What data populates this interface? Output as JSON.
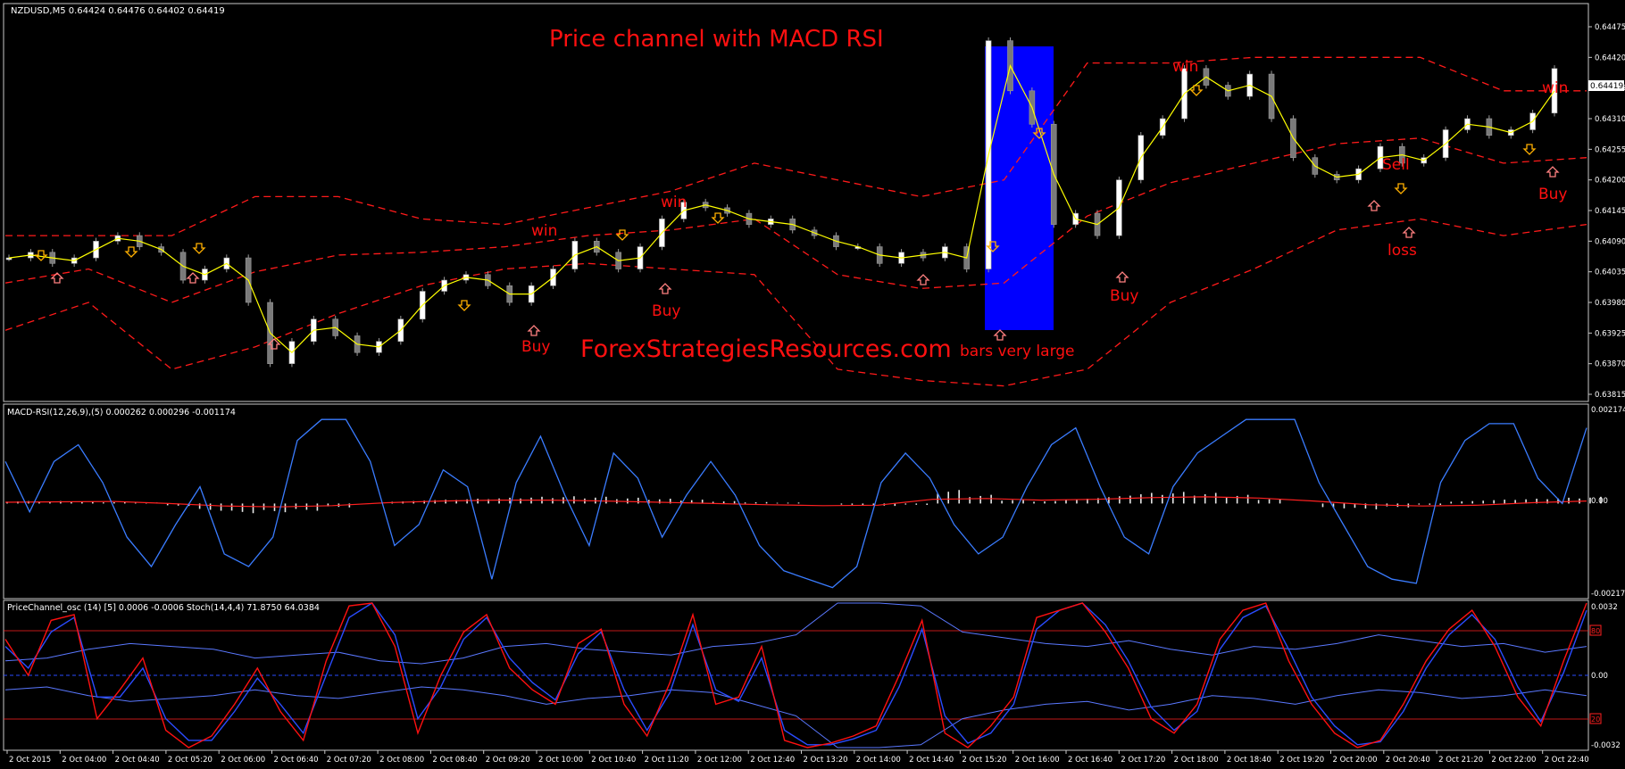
{
  "colors": {
    "background": "#000000",
    "frame": "#c8c8c8",
    "text": "#ffffff",
    "red": "#ff0000",
    "blue_line": "#3a7cff",
    "yellow_line": "#ffff00",
    "blue_box": "#0000ff",
    "arrow_orange": "#ffb000",
    "arrow_pink": "#ff8080"
  },
  "price_panel": {
    "header": "NZDUSD,M5  0.64424 0.64476 0.64402 0.64419",
    "title": "Price channel with MACD RSI",
    "watermark": "ForexStrategiesResources.com",
    "current_price": "0.64419",
    "price_axis": [
      "0.64475",
      "0.64420",
      "0.64365",
      "0.64310",
      "0.64255",
      "0.64200",
      "0.64145",
      "0.64090",
      "0.64035",
      "0.63980",
      "0.63925",
      "0.63870",
      "0.63815"
    ],
    "annotations": {
      "win_1": "win",
      "win_2": "win",
      "win_3": "win",
      "win_4": "win",
      "buy_1": "Buy",
      "buy_2": "Buy",
      "buy_3": "Buy",
      "buy_4": "Buy",
      "sell": "Sell",
      "loss": "loss",
      "large_bars": "bars very large"
    }
  },
  "macd_panel": {
    "header": "MACD-RSI(12,26,9),(5) 0.000262 0.000296 -0.001174",
    "axis": [
      "0.002174",
      "0.00",
      "-0.002178"
    ]
  },
  "osc_panel": {
    "header": "PriceChannel_osc (14) [5]  0.0006 -0.0006  Stoch(14,4,4) 71.8750 64.0384",
    "axis": [
      "0.0032",
      "0.00",
      "-0.0032"
    ],
    "level_top": "80",
    "level_bottom": "20"
  },
  "time_axis": [
    "2 Oct 2015",
    "2 Oct 04:00",
    "2 Oct 04:40",
    "2 Oct 05:20",
    "2 Oct 06:00",
    "2 Oct 06:40",
    "2 Oct 07:20",
    "2 Oct 08:00",
    "2 Oct 08:40",
    "2 Oct 09:20",
    "2 Oct 10:00",
    "2 Oct 10:40",
    "2 Oct 11:20",
    "2 Oct 12:00",
    "2 Oct 12:40",
    "2 Oct 13:20",
    "2 Oct 14:00",
    "2 Oct 14:40",
    "2 Oct 15:20",
    "2 Oct 16:00",
    "2 Oct 16:40",
    "2 Oct 17:20",
    "2 Oct 18:00",
    "2 Oct 18:40",
    "2 Oct 19:20",
    "2 Oct 20:00",
    "2 Oct 20:40",
    "2 Oct 21:20",
    "2 Oct 22:00",
    "2 Oct 22:40"
  ],
  "chart_data": [
    {
      "type": "line",
      "title": "Price channel with MACD RSI",
      "symbol": "NZDUSD,M5",
      "ylim": [
        0.63815,
        0.64475
      ],
      "series": [
        {
          "name": "close",
          "values": [
            0.6406,
            0.6407,
            0.6405,
            0.6406,
            0.6409,
            0.641,
            0.6408,
            0.6407,
            0.6402,
            0.6404,
            0.6406,
            0.6398,
            0.6387,
            0.6391,
            0.6395,
            0.6392,
            0.6389,
            0.6391,
            0.6395,
            0.64,
            0.6402,
            0.6403,
            0.6401,
            0.6398,
            0.6401,
            0.6404,
            0.6409,
            0.6407,
            0.6404,
            0.6408,
            0.6413,
            0.6416,
            0.6415,
            0.6414,
            0.6412,
            0.6413,
            0.6411,
            0.641,
            0.6408,
            0.6408,
            0.6405,
            0.6407,
            0.6406,
            0.6408,
            0.6404,
            0.6445,
            0.6436,
            0.643,
            0.6412,
            0.6414,
            0.641,
            0.642,
            0.6428,
            0.6431,
            0.644,
            0.6437,
            0.6435,
            0.6439,
            0.6431,
            0.6424,
            0.6421,
            0.642,
            0.6422,
            0.6426,
            0.6423,
            0.6424,
            0.6429,
            0.6431,
            0.6428,
            0.6429,
            0.6432,
            0.644
          ]
        },
        {
          "name": "channel upper",
          "values": [
            0.641,
            0.641,
            0.641,
            0.6417,
            0.6417,
            0.6413,
            0.6412,
            0.6415,
            0.6418,
            0.6423,
            0.642,
            0.6417,
            0.642,
            0.6441,
            0.6441,
            0.6442,
            0.6442,
            0.6442,
            0.6436,
            0.6436
          ]
        },
        {
          "name": "channel lower",
          "values": [
            0.6393,
            0.6398,
            0.6386,
            0.639,
            0.6396,
            0.6401,
            0.6404,
            0.6405,
            0.6404,
            0.6403,
            0.6386,
            0.6384,
            0.6383,
            0.6386,
            0.6398,
            0.6404,
            0.6411,
            0.6413,
            0.641,
            0.6412
          ]
        }
      ]
    },
    {
      "type": "line",
      "title": "MACD-RSI(12,26,9),(5)",
      "ylim": [
        -0.002178,
        0.002174
      ],
      "series": [
        {
          "name": "RSI line",
          "values": [
            0.001,
            -0.0002,
            0.001,
            0.0014,
            0.0005,
            -0.0008,
            -0.0015,
            -0.0005,
            0.0004,
            -0.0012,
            -0.0015,
            -0.0008,
            0.0015,
            0.002,
            0.002,
            0.001,
            -0.001,
            -0.0005,
            0.0008,
            0.0004,
            -0.0018,
            0.0005,
            0.0016,
            0.0002,
            -0.001,
            0.0012,
            0.0006,
            -0.0008,
            0.0002,
            0.001,
            0.0002,
            -0.001,
            -0.0016,
            -0.0018,
            -0.002,
            -0.0015,
            0.0005,
            0.0012,
            0.0006,
            -0.0005,
            -0.0012,
            -0.0008,
            0.0004,
            0.0014,
            0.0018,
            0.0004,
            -0.0008,
            -0.0012,
            0.0004,
            0.0012,
            0.0016,
            0.002,
            0.002,
            0.002,
            0.0005,
            -0.0005,
            -0.0015,
            -0.0018,
            -0.0019,
            0.0005,
            0.0015,
            0.0019,
            0.0019,
            0.0006,
            0.0,
            0.0018
          ]
        },
        {
          "name": "MACD histogram",
          "values": [
            5e-05,
            5e-05,
            4e-05,
            3e-05,
            2e-05,
            -5e-05,
            -0.00015,
            -0.0002,
            -0.00018,
            -0.00015,
            -8e-05,
            0.0,
            5e-05,
            8e-05,
            0.0001,
            0.00012,
            0.00014,
            0.00015,
            0.00014,
            0.00012,
            0.0001,
            8e-05,
            5e-05,
            3e-05,
            2e-05,
            0.0,
            -3e-05,
            -5e-05,
            -3e-05,
            0.00028,
            0.00018,
            8e-05,
            5e-05,
            0.0001,
            0.00015,
            0.00022,
            0.00024,
            0.00022,
            0.00018,
            0.0001,
            0.0,
            -0.0001,
            -0.00012,
            -8e-05,
            -3e-05,
            5e-05,
            8e-05,
            0.0001,
            0.00012,
            0.00014
          ]
        },
        {
          "name": "signal",
          "values": [
            3e-05,
            4e-05,
            5e-05,
            0.0,
            -6e-05,
            -8e-05,
            -5e-05,
            2e-05,
            6e-05,
            8e-05,
            8e-05,
            6e-05,
            3e-05,
            0.0,
            -3e-05,
            -5e-05,
            -4e-05,
            0.0001,
            0.00012,
            8e-05,
            0.0001,
            0.00014,
            0.00016,
            0.00013,
            6e-05,
            -3e-05,
            -6e-05,
            -4e-05,
            2e-05,
            6e-05
          ]
        }
      ]
    },
    {
      "type": "line",
      "title": "PriceChannel_osc (14) [5] / Stoch(14,4,4)",
      "ylim": [
        -0.0032,
        0.0032
      ],
      "levels": [
        80,
        20
      ],
      "series": [
        {
          "name": "stoch main (red)",
          "values": [
            75,
            50,
            88,
            92,
            20,
            40,
            62,
            12,
            0,
            8,
            30,
            55,
            25,
            5,
            60,
            98,
            100,
            70,
            10,
            50,
            80,
            92,
            55,
            40,
            30,
            72,
            82,
            30,
            8,
            45,
            92,
            30,
            35,
            70,
            5,
            0,
            3,
            8,
            15,
            50,
            88,
            10,
            0,
            15,
            35,
            90,
            95,
            100,
            80,
            55,
            20,
            10,
            30,
            75,
            95,
            100,
            60,
            30,
            10,
            0,
            5,
            30,
            60,
            82,
            95,
            70,
            35,
            15,
            60,
            100
          ]
        },
        {
          "name": "stoch signal (blue)",
          "values": [
            70,
            55,
            80,
            90,
            35,
            35,
            55,
            20,
            5,
            5,
            25,
            48,
            30,
            10,
            50,
            90,
            100,
            78,
            20,
            42,
            75,
            90,
            62,
            45,
            33,
            65,
            80,
            40,
            12,
            38,
            85,
            40,
            32,
            62,
            12,
            2,
            2,
            6,
            12,
            42,
            82,
            22,
            3,
            10,
            30,
            82,
            95,
            100,
            85,
            60,
            28,
            12,
            25,
            68,
            90,
            98,
            68,
            35,
            15,
            2,
            4,
            25,
            55,
            78,
            92,
            75,
            42,
            18,
            52,
            95
          ]
        }
      ]
    }
  ]
}
